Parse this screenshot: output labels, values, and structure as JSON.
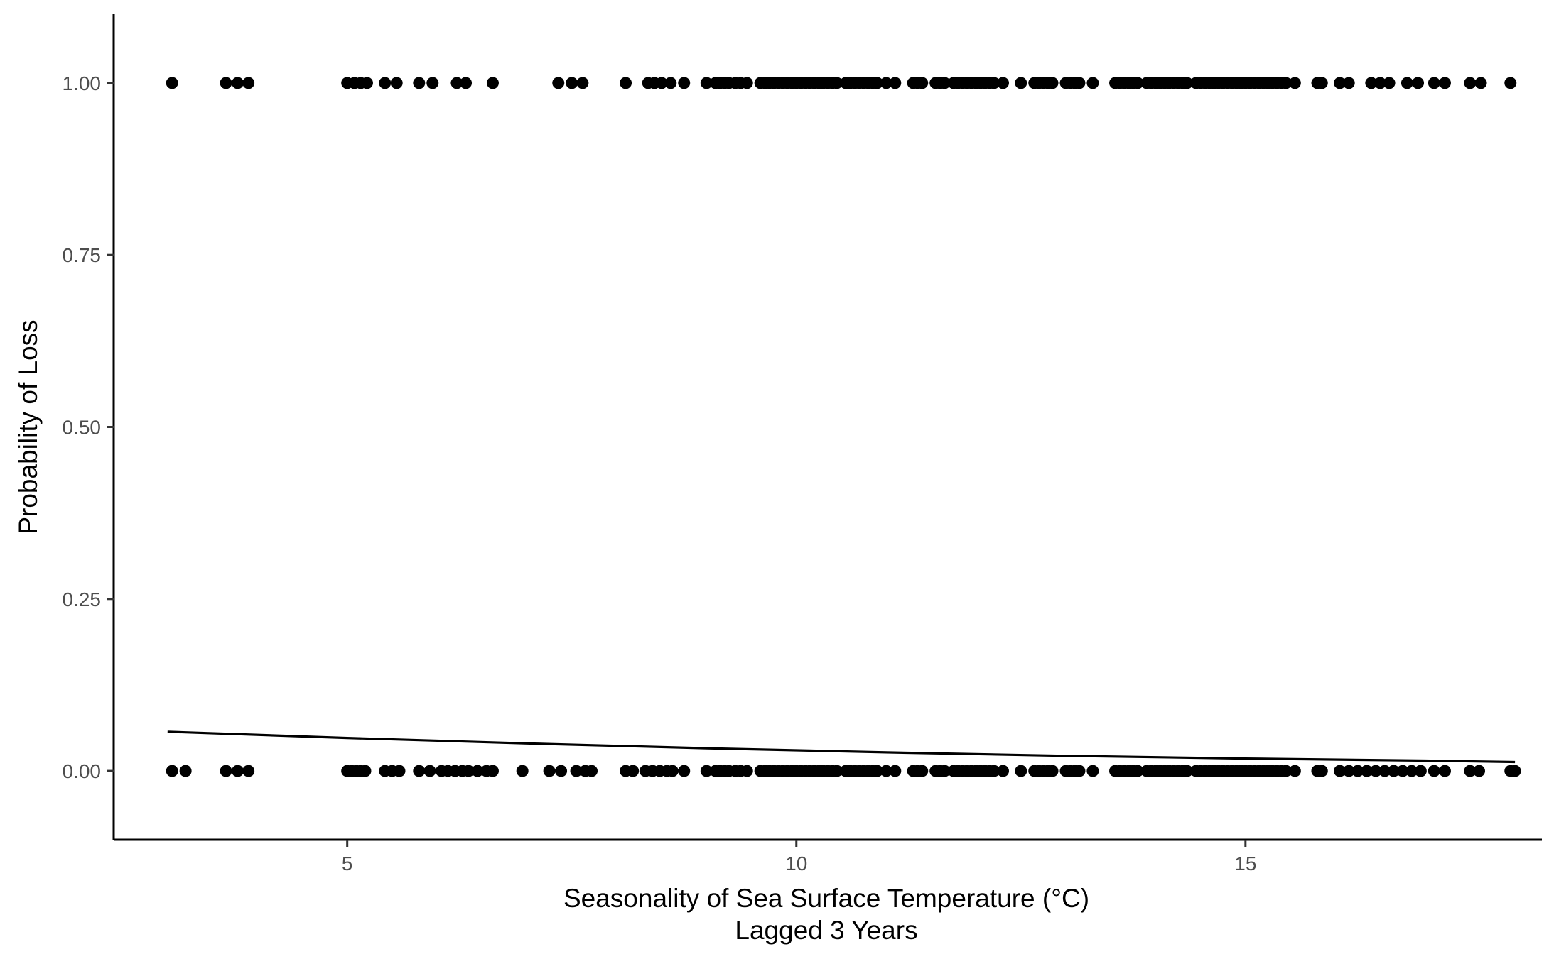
{
  "chart_data": {
    "type": "scatter",
    "title": "",
    "xlabel": "Seasonality of Sea Surface Temperature (°C)",
    "xlabel_line2": "Lagged 3 Years",
    "ylabel": "Probability of Loss",
    "xlim": [
      2.4,
      18.3
    ],
    "ylim": [
      -0.1,
      1.1
    ],
    "x_ticks": [
      {
        "value": 5,
        "label": "5"
      },
      {
        "value": 10,
        "label": "10"
      },
      {
        "value": 15,
        "label": "15"
      }
    ],
    "y_ticks": [
      {
        "value": 0,
        "label": "0.00"
      },
      {
        "value": 0.25,
        "label": "0.25"
      },
      {
        "value": 0.5,
        "label": "0.50"
      },
      {
        "value": 0.75,
        "label": "0.75"
      },
      {
        "value": 1,
        "label": "1.00"
      }
    ],
    "grid": false,
    "legend": "none",
    "point_color": "#000000",
    "series": [
      {
        "kind": "points",
        "y": 1,
        "x": [
          3.05,
          3.65,
          3.78,
          3.9,
          5.0,
          5.08,
          5.15,
          5.22,
          5.42,
          5.55,
          5.8,
          5.95,
          6.22,
          6.32,
          6.62,
          7.35,
          7.5,
          7.62,
          8.1,
          8.35,
          8.42,
          8.5,
          8.6,
          8.75,
          9.0,
          9.1,
          9.15,
          9.2,
          9.25,
          9.32,
          9.38,
          9.45,
          9.6,
          9.65,
          9.7,
          9.75,
          9.8,
          9.85,
          9.9,
          9.95,
          10.0,
          10.05,
          10.1,
          10.15,
          10.2,
          10.25,
          10.3,
          10.35,
          10.4,
          10.45,
          10.55,
          10.6,
          10.65,
          10.7,
          10.75,
          10.8,
          10.85,
          10.9,
          11.0,
          11.1,
          11.3,
          11.35,
          11.4,
          11.55,
          11.6,
          11.65,
          11.75,
          11.8,
          11.85,
          11.9,
          11.95,
          12.0,
          12.05,
          12.1,
          12.15,
          12.2,
          12.3,
          12.5,
          12.65,
          12.7,
          12.75,
          12.8,
          12.85,
          13.0,
          13.05,
          13.1,
          13.15,
          13.3,
          13.55,
          13.6,
          13.65,
          13.7,
          13.75,
          13.8,
          13.9,
          13.95,
          14.0,
          14.05,
          14.1,
          14.15,
          14.2,
          14.25,
          14.3,
          14.35,
          14.45,
          14.5,
          14.55,
          14.6,
          14.65,
          14.7,
          14.75,
          14.8,
          14.85,
          14.9,
          14.95,
          15.0,
          15.05,
          15.1,
          15.15,
          15.2,
          15.25,
          15.3,
          15.35,
          15.4,
          15.45,
          15.55,
          15.8,
          15.85,
          16.05,
          16.15,
          16.4,
          16.5,
          16.6,
          16.8,
          16.92,
          17.1,
          17.22,
          17.5,
          17.62,
          17.95
        ]
      },
      {
        "kind": "points",
        "y": 0,
        "x": [
          3.05,
          3.2,
          3.65,
          3.78,
          3.9,
          5.0,
          5.05,
          5.1,
          5.15,
          5.2,
          5.42,
          5.5,
          5.58,
          5.8,
          5.92,
          6.05,
          6.12,
          6.2,
          6.28,
          6.35,
          6.45,
          6.55,
          6.62,
          6.95,
          7.25,
          7.38,
          7.55,
          7.65,
          7.72,
          8.1,
          8.18,
          8.32,
          8.4,
          8.48,
          8.56,
          8.62,
          8.75,
          9.0,
          9.1,
          9.15,
          9.2,
          9.25,
          9.32,
          9.38,
          9.45,
          9.6,
          9.65,
          9.7,
          9.75,
          9.8,
          9.85,
          9.9,
          9.95,
          10.0,
          10.05,
          10.1,
          10.15,
          10.2,
          10.25,
          10.3,
          10.35,
          10.4,
          10.45,
          10.55,
          10.6,
          10.65,
          10.7,
          10.75,
          10.8,
          10.85,
          10.9,
          11.0,
          11.1,
          11.3,
          11.35,
          11.4,
          11.55,
          11.6,
          11.65,
          11.75,
          11.8,
          11.85,
          11.9,
          11.95,
          12.0,
          12.05,
          12.1,
          12.15,
          12.2,
          12.3,
          12.5,
          12.65,
          12.7,
          12.75,
          12.8,
          12.85,
          13.0,
          13.05,
          13.1,
          13.15,
          13.3,
          13.55,
          13.6,
          13.65,
          13.7,
          13.75,
          13.8,
          13.9,
          13.95,
          14.0,
          14.05,
          14.1,
          14.15,
          14.2,
          14.25,
          14.3,
          14.35,
          14.45,
          14.5,
          14.55,
          14.6,
          14.65,
          14.7,
          14.75,
          14.8,
          14.85,
          14.9,
          14.95,
          15.0,
          15.05,
          15.1,
          15.15,
          15.2,
          15.25,
          15.3,
          15.35,
          15.4,
          15.45,
          15.55,
          15.8,
          15.85,
          16.05,
          16.15,
          16.25,
          16.35,
          16.45,
          16.55,
          16.65,
          16.75,
          16.85,
          16.95,
          17.1,
          17.22,
          17.5,
          17.6,
          17.95,
          18.0
        ]
      },
      {
        "kind": "line",
        "name": "",
        "x": [
          3.0,
          5.0,
          7.0,
          9.0,
          11.0,
          13.0,
          15.0,
          17.0,
          18.0
        ],
        "y": [
          0.057,
          0.048,
          0.04,
          0.033,
          0.027,
          0.022,
          0.018,
          0.015,
          0.013
        ]
      }
    ]
  }
}
